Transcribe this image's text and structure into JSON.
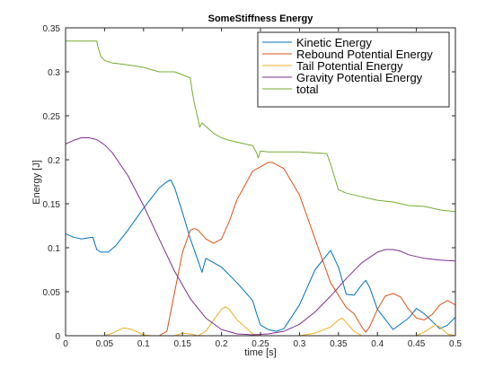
{
  "chart_data": {
    "type": "line",
    "title": "SomeStiffness Energy",
    "xlabel": "time [s]",
    "ylabel": "Energy [J]",
    "xlim": [
      0,
      0.5
    ],
    "ylim": [
      0,
      0.35
    ],
    "xticks": [
      0,
      0.05,
      0.1,
      0.15,
      0.2,
      0.25,
      0.3,
      0.35,
      0.4,
      0.45,
      0.5
    ],
    "xtick_labels": [
      "0",
      "0.05",
      "0.1",
      "0.15",
      "0.2",
      "0.25",
      "0.3",
      "0.35",
      "0.4",
      "0.45",
      "0.5"
    ],
    "yticks": [
      0,
      0.05,
      0.1,
      0.15,
      0.2,
      0.25,
      0.3,
      0.35
    ],
    "ytick_labels": [
      "0",
      "0.05",
      "0.1",
      "0.15",
      "0.2",
      "0.25",
      "0.3",
      "0.35"
    ],
    "grid": false,
    "legend_position": "top-right",
    "series": [
      {
        "name": "Kinetic Energy",
        "color": "#0072BD",
        "x": [
          0,
          0.01,
          0.02,
          0.035,
          0.04,
          0.045,
          0.055,
          0.065,
          0.08,
          0.1,
          0.12,
          0.13,
          0.135,
          0.14,
          0.15,
          0.16,
          0.17,
          0.175,
          0.18,
          0.2,
          0.22,
          0.24,
          0.245,
          0.25,
          0.26,
          0.27,
          0.28,
          0.3,
          0.32,
          0.34,
          0.35,
          0.36,
          0.37,
          0.38,
          0.385,
          0.39,
          0.4,
          0.42,
          0.44,
          0.45,
          0.46,
          0.48,
          0.49,
          0.5
        ],
        "y": [
          0.116,
          0.112,
          0.11,
          0.112,
          0.098,
          0.095,
          0.095,
          0.103,
          0.12,
          0.145,
          0.168,
          0.175,
          0.177,
          0.168,
          0.14,
          0.11,
          0.085,
          0.072,
          0.088,
          0.078,
          0.06,
          0.04,
          0.025,
          0.012,
          0.007,
          0.005,
          0.008,
          0.035,
          0.075,
          0.097,
          0.078,
          0.047,
          0.046,
          0.058,
          0.063,
          0.055,
          0.03,
          0.007,
          0.02,
          0.031,
          0.025,
          0.008,
          0.012,
          0.021
        ]
      },
      {
        "name": "Rebound Potential Energy",
        "color": "#D95319",
        "x": [
          0,
          0.1,
          0.12,
          0.13,
          0.14,
          0.15,
          0.16,
          0.165,
          0.17,
          0.18,
          0.19,
          0.2,
          0.21,
          0.22,
          0.24,
          0.26,
          0.265,
          0.28,
          0.3,
          0.32,
          0.34,
          0.36,
          0.37,
          0.38,
          0.385,
          0.39,
          0.4,
          0.41,
          0.42,
          0.43,
          0.44,
          0.45,
          0.46,
          0.47,
          0.48,
          0.49,
          0.5
        ],
        "y": [
          0,
          0,
          0,
          0.005,
          0.05,
          0.095,
          0.12,
          0.122,
          0.12,
          0.11,
          0.105,
          0.11,
          0.13,
          0.155,
          0.187,
          0.197,
          0.197,
          0.19,
          0.16,
          0.11,
          0.06,
          0.032,
          0.025,
          0.01,
          0.004,
          0.01,
          0.03,
          0.045,
          0.048,
          0.044,
          0.03,
          0.02,
          0.018,
          0.024,
          0.035,
          0.04,
          0.035
        ]
      },
      {
        "name": "Tail Potential Energy",
        "color": "#EDB120",
        "x": [
          0,
          0.05,
          0.06,
          0.07,
          0.075,
          0.085,
          0.1,
          0.11,
          0.14,
          0.15,
          0.16,
          0.17,
          0.18,
          0.19,
          0.2,
          0.205,
          0.21,
          0.22,
          0.24,
          0.25,
          0.28,
          0.3,
          0.32,
          0.34,
          0.35,
          0.355,
          0.36,
          0.37,
          0.38,
          0.45,
          0.46,
          0.47,
          0.475,
          0.48,
          0.49,
          0.5
        ],
        "y": [
          0,
          0,
          0.003,
          0.007,
          0.009,
          0.007,
          0.001,
          0,
          0,
          0.003,
          0.002,
          0,
          0.005,
          0.018,
          0.03,
          0.033,
          0.03,
          0.018,
          0.002,
          0,
          0,
          0,
          0.003,
          0.01,
          0.018,
          0.02,
          0.015,
          0.005,
          0,
          0,
          0.004,
          0.01,
          0.012,
          0.01,
          0.002,
          0
        ]
      },
      {
        "name": "Gravity Potential Energy",
        "color": "#7E2F8E",
        "x": [
          0,
          0.01,
          0.02,
          0.03,
          0.04,
          0.05,
          0.06,
          0.08,
          0.1,
          0.12,
          0.14,
          0.16,
          0.18,
          0.2,
          0.22,
          0.24,
          0.26,
          0.28,
          0.3,
          0.32,
          0.34,
          0.36,
          0.38,
          0.4,
          0.41,
          0.42,
          0.43,
          0.44,
          0.46,
          0.48,
          0.5
        ],
        "y": [
          0.218,
          0.222,
          0.225,
          0.225,
          0.223,
          0.217,
          0.208,
          0.182,
          0.148,
          0.11,
          0.073,
          0.042,
          0.02,
          0.007,
          0.002,
          0.001,
          0.002,
          0.005,
          0.013,
          0.027,
          0.045,
          0.065,
          0.083,
          0.095,
          0.098,
          0.098,
          0.096,
          0.092,
          0.088,
          0.086,
          0.085
        ]
      },
      {
        "name": "total",
        "color": "#77AC30",
        "x": [
          0,
          0.04,
          0.041,
          0.045,
          0.05,
          0.06,
          0.08,
          0.1,
          0.12,
          0.14,
          0.16,
          0.162,
          0.165,
          0.17,
          0.172,
          0.175,
          0.18,
          0.19,
          0.2,
          0.21,
          0.22,
          0.24,
          0.245,
          0.247,
          0.25,
          0.26,
          0.3,
          0.335,
          0.34,
          0.345,
          0.35,
          0.36,
          0.38,
          0.4,
          0.42,
          0.44,
          0.46,
          0.48,
          0.5
        ],
        "y": [
          0.335,
          0.335,
          0.33,
          0.318,
          0.313,
          0.31,
          0.308,
          0.305,
          0.3,
          0.3,
          0.293,
          0.28,
          0.265,
          0.246,
          0.237,
          0.242,
          0.238,
          0.23,
          0.225,
          0.222,
          0.22,
          0.216,
          0.208,
          0.202,
          0.21,
          0.209,
          0.209,
          0.207,
          0.195,
          0.18,
          0.166,
          0.162,
          0.158,
          0.154,
          0.152,
          0.148,
          0.147,
          0.143,
          0.141
        ]
      }
    ]
  }
}
